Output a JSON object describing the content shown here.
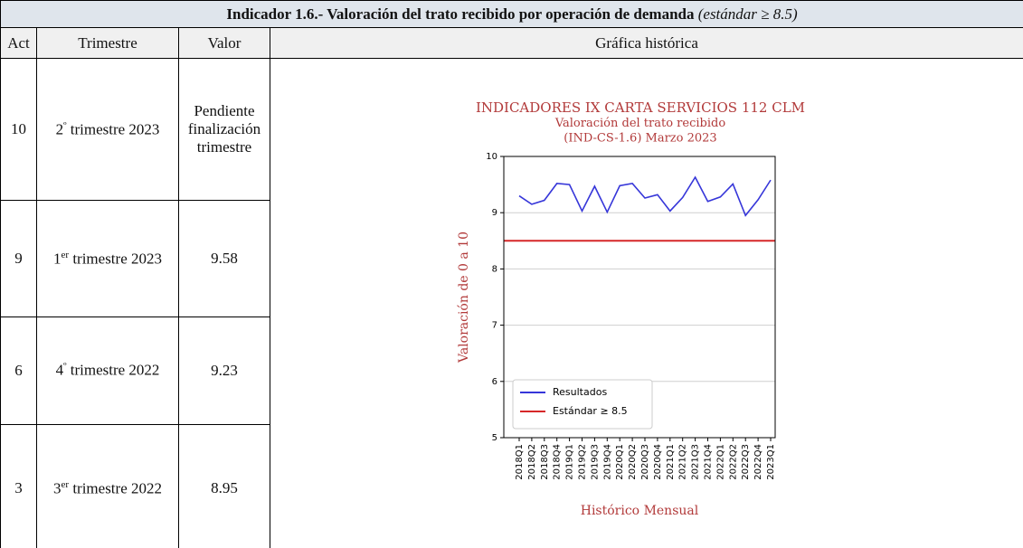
{
  "header": {
    "title": "Indicador 1.6.- Valoración del trato recibido por operación de demanda",
    "title_note": "(estándar ≥ 8.5)"
  },
  "table": {
    "columns": [
      "Act",
      "Trimestre",
      "Valor",
      "Gráfica histórica"
    ],
    "rows": [
      {
        "act": 10,
        "ordinal": "2",
        "ordinal_suffix": "º",
        "period": "trimestre 2023",
        "value": "Pendiente finalización trimestre"
      },
      {
        "act": 9,
        "ordinal": "1",
        "ordinal_suffix": "er",
        "period": "trimestre 2023",
        "value": 9.58
      },
      {
        "act": 6,
        "ordinal": "4",
        "ordinal_suffix": "º",
        "period": "trimestre 2022",
        "value": 9.23
      },
      {
        "act": 3,
        "ordinal": "3",
        "ordinal_suffix": "er",
        "period": "trimestre 2022",
        "value": 8.95
      }
    ]
  },
  "chart": {
    "type": "line",
    "title": [
      "INDICADORES IX CARTA SERVICIOS 112 CLM",
      "Valoración del trato recibido",
      "(IND-CS-1.6) Marzo 2023"
    ],
    "title_color": "#b23a3a",
    "ylabel": "Valoración de 0 a 10",
    "xlabel": "Histórico Mensual",
    "categories": [
      "2018Q1",
      "2018Q2",
      "2018Q3",
      "2018Q4",
      "2019Q1",
      "2019Q2",
      "2019Q3",
      "2019Q4",
      "2020Q1",
      "2020Q2",
      "2020Q3",
      "2020Q4",
      "2021Q1",
      "2021Q2",
      "2021Q3",
      "2021Q4",
      "2022Q1",
      "2022Q2",
      "2022Q3",
      "2022Q4",
      "2023Q1"
    ],
    "series": [
      {
        "name": "Resultados",
        "color": "#3636d9",
        "values": [
          9.3,
          9.15,
          9.22,
          9.52,
          9.5,
          9.03,
          9.47,
          9.01,
          9.48,
          9.52,
          9.26,
          9.32,
          9.03,
          9.27,
          9.63,
          9.2,
          9.28,
          9.51,
          8.95,
          9.23,
          9.58
        ]
      }
    ],
    "reference_lines": [
      {
        "name": "Estándar ≥ 8.5",
        "color": "#d62728",
        "value": 8.5
      }
    ],
    "ylim": [
      5,
      10
    ],
    "yticks": [
      5,
      6,
      7,
      8,
      9,
      10
    ],
    "grid": true,
    "legend": "lower left"
  }
}
